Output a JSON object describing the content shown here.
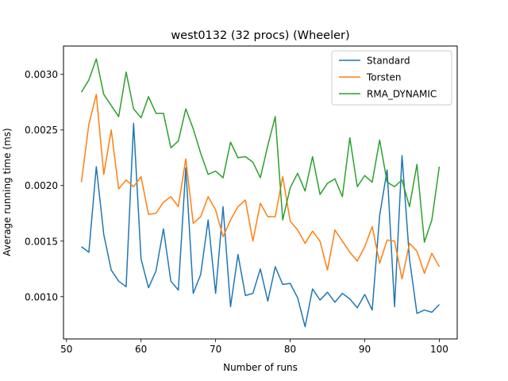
{
  "chart_data": {
    "type": "line",
    "title": "west0132 (32 procs) (Wheeler)",
    "xlabel": "Number of runs",
    "ylabel": "Average running time (ms)",
    "xlim": [
      49.6,
      102.4
    ],
    "ylim": [
      0.00062,
      0.003255
    ],
    "xticks": [
      50,
      60,
      70,
      80,
      90,
      100
    ],
    "xtick_labels": [
      "50",
      "60",
      "70",
      "80",
      "90",
      "100"
    ],
    "yticks": [
      0.001,
      0.0015,
      0.002,
      0.0025,
      0.003
    ],
    "ytick_labels": [
      "0.0010",
      "0.0015",
      "0.0020",
      "0.0025",
      "0.0030"
    ],
    "grid": false,
    "legend_position": "top-right",
    "x": [
      52,
      53,
      54,
      55,
      56,
      57,
      58,
      59,
      60,
      61,
      62,
      63,
      64,
      65,
      66,
      67,
      68,
      69,
      70,
      71,
      72,
      73,
      74,
      75,
      76,
      77,
      78,
      79,
      80,
      81,
      82,
      83,
      84,
      85,
      86,
      87,
      88,
      89,
      90,
      91,
      92,
      93,
      94,
      95,
      96,
      97,
      98,
      99,
      100
    ],
    "series": [
      {
        "name": "Standard",
        "color": "#1f77b4",
        "values": [
          0.00145,
          0.0014,
          0.00217,
          0.00156,
          0.00124,
          0.00114,
          0.00109,
          0.00256,
          0.00134,
          0.00108,
          0.00123,
          0.00161,
          0.00114,
          0.00106,
          0.00216,
          0.00103,
          0.0012,
          0.00169,
          0.00103,
          0.00181,
          0.00091,
          0.00138,
          0.00101,
          0.00103,
          0.00125,
          0.00096,
          0.00127,
          0.00111,
          0.00112,
          0.00099,
          0.00073,
          0.00107,
          0.00097,
          0.00104,
          0.00095,
          0.00103,
          0.00098,
          0.0009,
          0.00102,
          0.00088,
          0.00173,
          0.00214,
          0.00091,
          0.00227,
          0.00134,
          0.00085,
          0.00088,
          0.00086,
          0.00093
        ]
      },
      {
        "name": "Torsten",
        "color": "#ff7f0e",
        "values": [
          0.00203,
          0.00255,
          0.00282,
          0.0021,
          0.0025,
          0.00197,
          0.00205,
          0.00199,
          0.00208,
          0.00174,
          0.00175,
          0.00185,
          0.0019,
          0.00181,
          0.00224,
          0.00166,
          0.00172,
          0.0019,
          0.00178,
          0.00154,
          0.00169,
          0.00181,
          0.00187,
          0.0015,
          0.00184,
          0.00172,
          0.00172,
          0.00208,
          0.00168,
          0.0016,
          0.00148,
          0.00159,
          0.0015,
          0.00124,
          0.0016,
          0.0015,
          0.0014,
          0.00132,
          0.00145,
          0.00163,
          0.0013,
          0.00151,
          0.0015,
          0.00116,
          0.00148,
          0.00141,
          0.00121,
          0.00139,
          0.00127
        ]
      },
      {
        "name": "RMA_DYNAMIC",
        "color": "#2ca02c",
        "values": [
          0.00284,
          0.00295,
          0.00314,
          0.00282,
          0.00272,
          0.00262,
          0.00302,
          0.00269,
          0.00261,
          0.0028,
          0.00265,
          0.00265,
          0.00234,
          0.0024,
          0.00269,
          0.00251,
          0.00229,
          0.0021,
          0.00213,
          0.00207,
          0.00239,
          0.00225,
          0.00226,
          0.00221,
          0.00207,
          0.00236,
          0.00262,
          0.00169,
          0.00198,
          0.00211,
          0.00195,
          0.00226,
          0.00192,
          0.00202,
          0.00206,
          0.0019,
          0.00243,
          0.00199,
          0.00209,
          0.00203,
          0.00241,
          0.00203,
          0.00199,
          0.00205,
          0.00181,
          0.00219,
          0.00149,
          0.00169,
          0.00217
        ]
      }
    ]
  }
}
